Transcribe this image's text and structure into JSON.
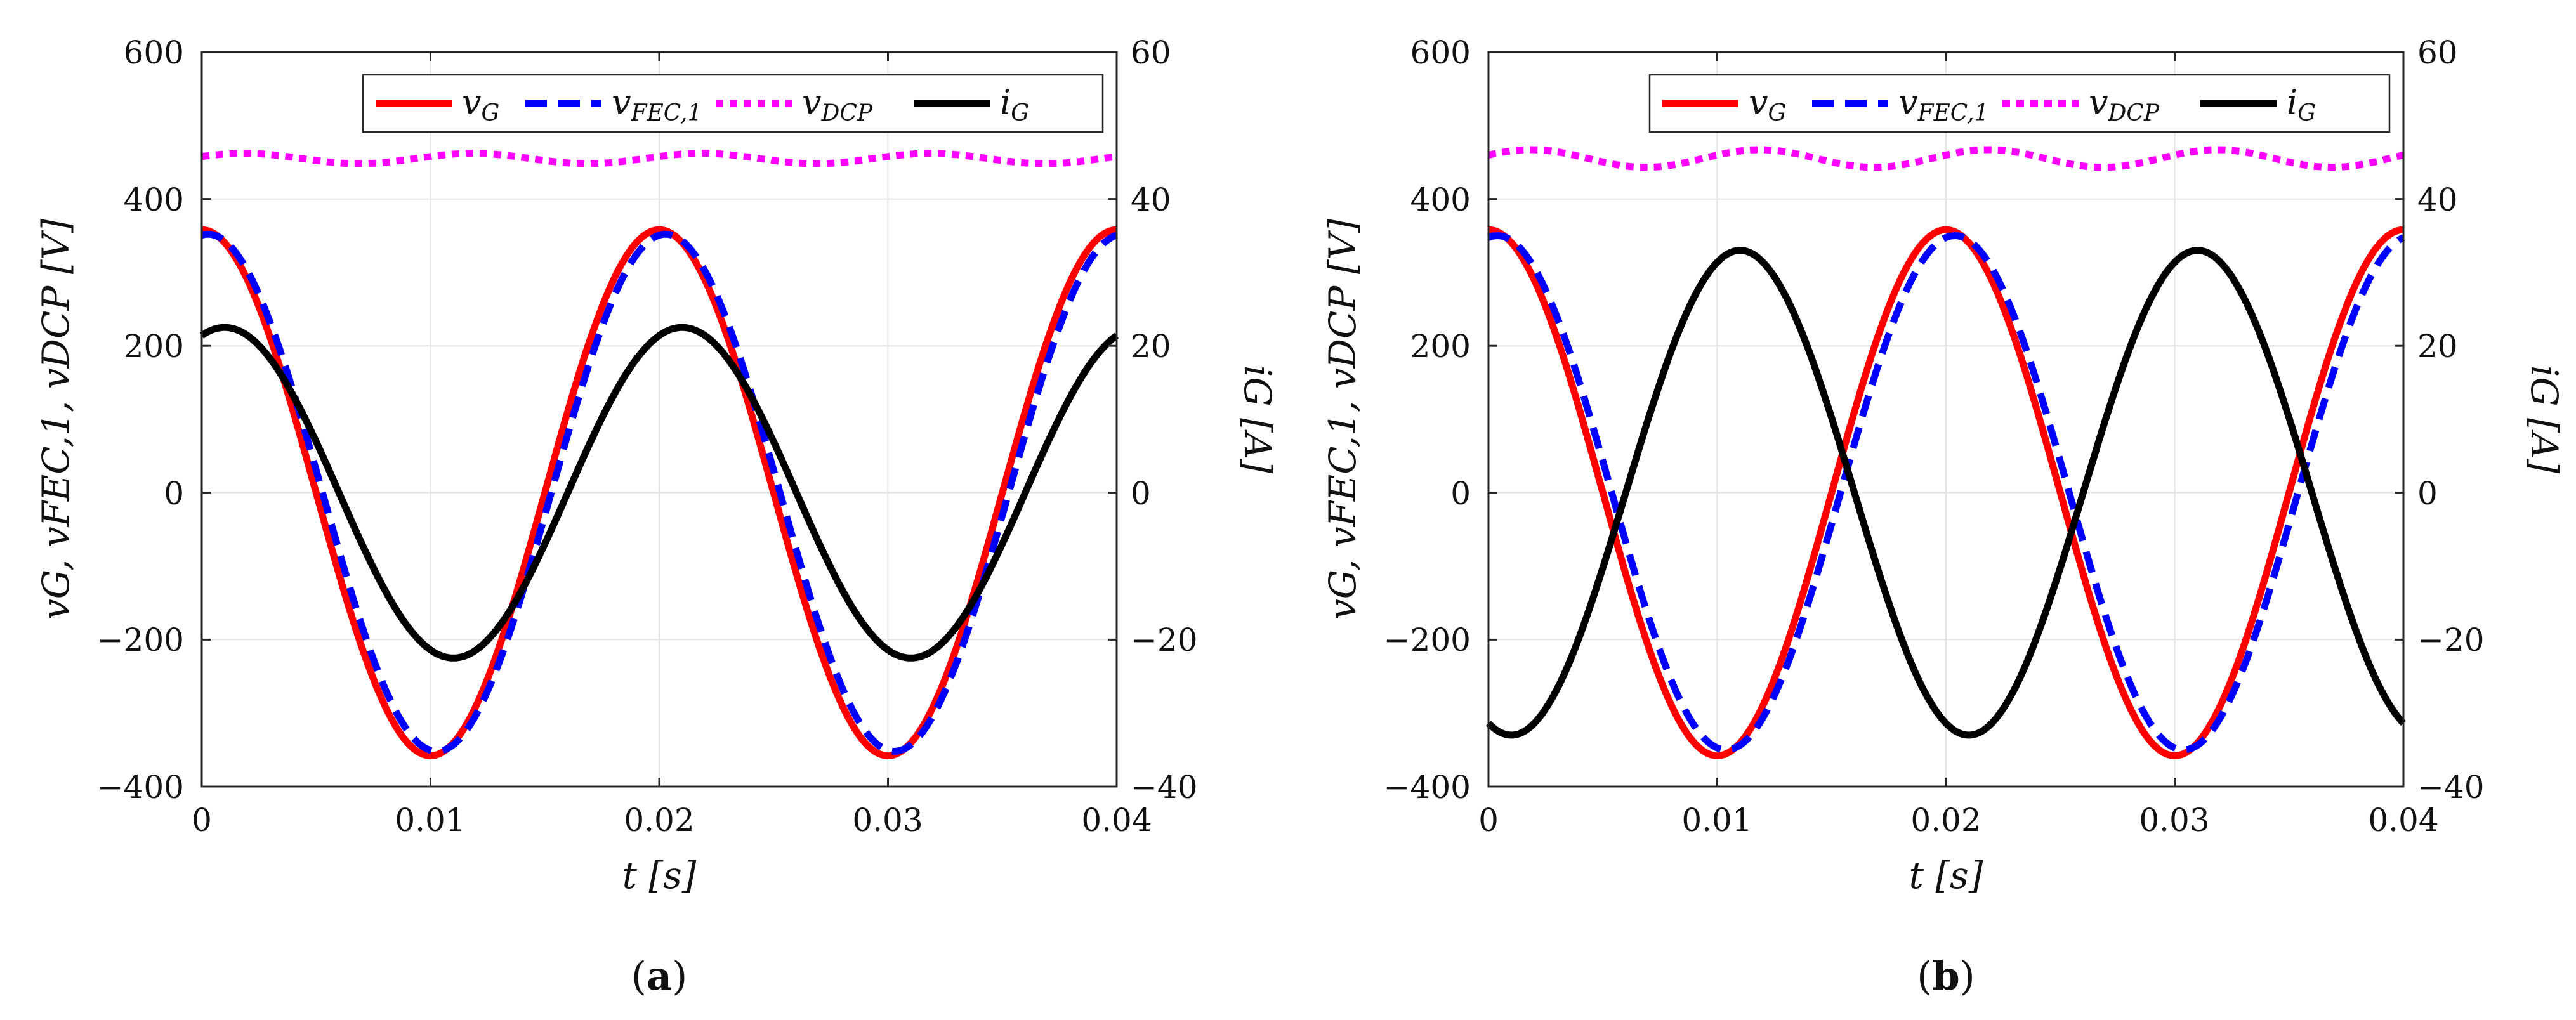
{
  "figure_captions": [
    "a",
    "b"
  ],
  "chart_data": [
    {
      "id": "a",
      "type": "line",
      "caption": "a",
      "xlabel": "t [s]",
      "ylabel": "vG, vFEC,1, vDCP [V]",
      "ylabel2": "iG [A]",
      "xlim": [
        0,
        0.04
      ],
      "ylim": [
        -400,
        600
      ],
      "y2lim": [
        -40,
        60
      ],
      "xticks": [
        "0",
        "0.01",
        "0.02",
        "0.03",
        "0.04"
      ],
      "yticks": [
        "600",
        "400",
        "200",
        "0",
        "−200",
        "−400"
      ],
      "y2ticks": [
        "60",
        "40",
        "20",
        "0",
        "−20",
        "−40"
      ],
      "grid": true,
      "legend_position": "top-right",
      "series": [
        {
          "name": "vG",
          "color": "#ff0000",
          "dash": "solid",
          "axis": "left",
          "amplitude": 358,
          "phase_deg": 0,
          "offset": 0,
          "frequency_hz": 50
        },
        {
          "name": "vFEC,1",
          "color": "#0000ff",
          "dash": "dashed",
          "axis": "left",
          "amplitude": 352,
          "phase_deg": -5,
          "offset": 0,
          "frequency_hz": 50
        },
        {
          "name": "vDCP",
          "color": "#ff00ff",
          "dash": "dotted",
          "axis": "left",
          "offset": 455,
          "ripple": 7,
          "ripple_frequency_hz": 100
        },
        {
          "name": "iG",
          "color": "#000000",
          "dash": "solid",
          "axis": "right",
          "amplitude": 22.5,
          "phase_deg": -18,
          "offset": 0,
          "frequency_hz": 50
        }
      ],
      "legend": [
        {
          "label": "v",
          "sub": "G"
        },
        {
          "label": "v",
          "sub": "FEC,1"
        },
        {
          "label": "v",
          "sub": "DCP"
        },
        {
          "label": "i",
          "sub": "G"
        }
      ]
    },
    {
      "id": "b",
      "type": "line",
      "caption": "b",
      "xlabel": "t [s]",
      "ylabel": "vG, vFEC,1, vDCP [V]",
      "ylabel2": "iG [A]",
      "xlim": [
        0,
        0.04
      ],
      "ylim": [
        -400,
        600
      ],
      "y2lim": [
        -40,
        60
      ],
      "xticks": [
        "0",
        "0.01",
        "0.02",
        "0.03",
        "0.04"
      ],
      "yticks": [
        "600",
        "400",
        "200",
        "0",
        "−200",
        "−400"
      ],
      "y2ticks": [
        "60",
        "40",
        "20",
        "0",
        "−20",
        "−40"
      ],
      "grid": true,
      "legend_position": "top-right",
      "series": [
        {
          "name": "vG",
          "color": "#ff0000",
          "dash": "solid",
          "axis": "left",
          "amplitude": 358,
          "phase_deg": 0,
          "offset": 0,
          "frequency_hz": 50
        },
        {
          "name": "vFEC,1",
          "color": "#0000ff",
          "dash": "dashed",
          "axis": "left",
          "amplitude": 350,
          "phase_deg": -7,
          "offset": 0,
          "frequency_hz": 50
        },
        {
          "name": "vDCP",
          "color": "#ff00ff",
          "dash": "dotted",
          "axis": "left",
          "offset": 455,
          "ripple": 12,
          "ripple_frequency_hz": 100
        },
        {
          "name": "iG",
          "color": "#000000",
          "dash": "solid",
          "axis": "right",
          "amplitude": 33,
          "phase_deg": -198,
          "offset": 0,
          "frequency_hz": 50
        }
      ],
      "legend": [
        {
          "label": "v",
          "sub": "G"
        },
        {
          "label": "v",
          "sub": "FEC,1"
        },
        {
          "label": "v",
          "sub": "DCP"
        },
        {
          "label": "i",
          "sub": "G"
        }
      ]
    }
  ]
}
